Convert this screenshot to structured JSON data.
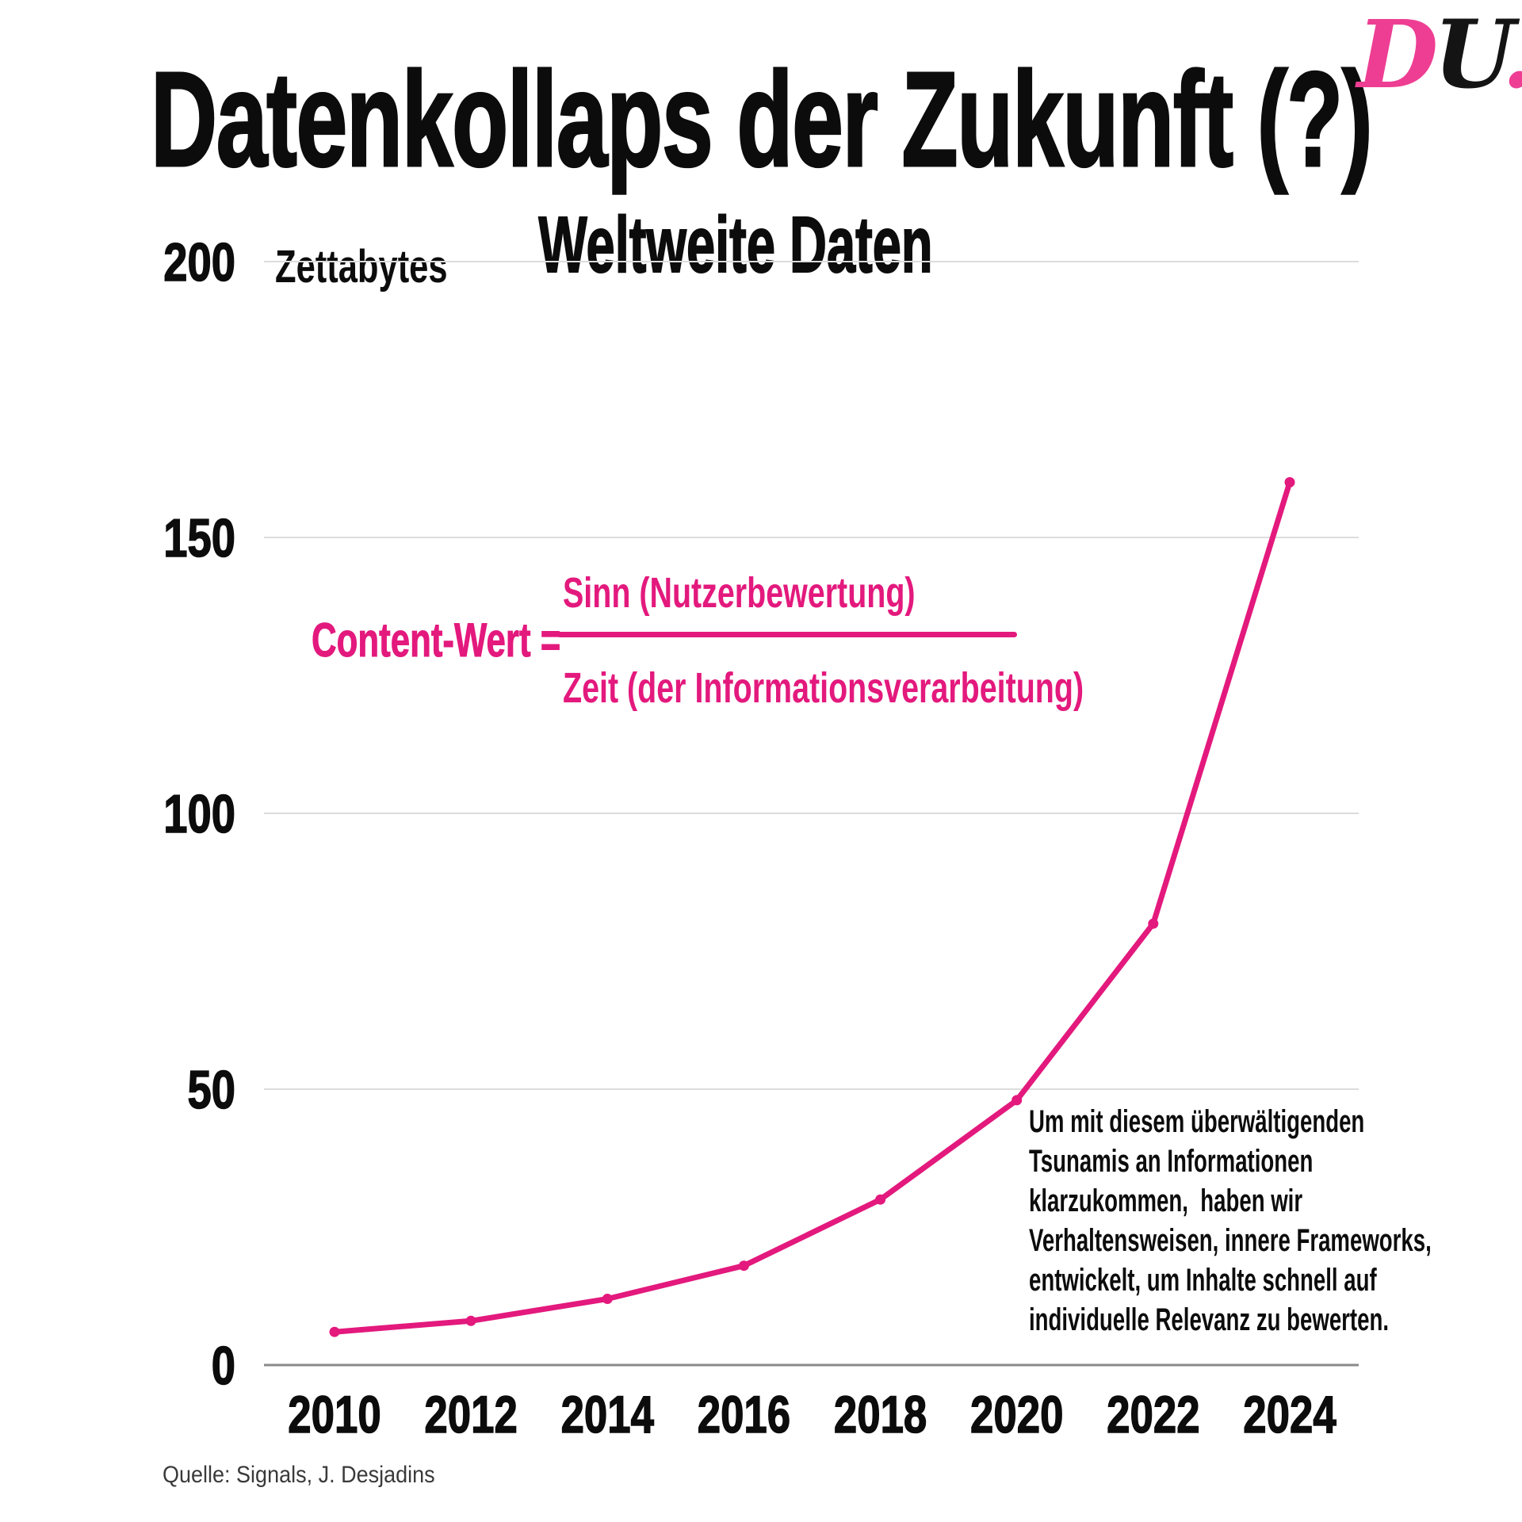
{
  "page": {
    "title": "Datenkollaps der Zukunft (?)",
    "logo": {
      "d": "D",
      "u": "U",
      "dot": "."
    }
  },
  "chart_data": {
    "type": "line",
    "title": "Weltweite Daten",
    "unit_label": "Zettabytes",
    "categories": [
      "2010",
      "2012",
      "2014",
      "2016",
      "2018",
      "2020",
      "2022",
      "2024"
    ],
    "series": [
      {
        "name": "Weltweite Daten (Zettabytes)",
        "values": [
          6,
          8,
          12,
          18,
          30,
          48,
          80,
          160
        ]
      }
    ],
    "xlabel": "",
    "ylabel": "Zettabytes",
    "yticks": [
      200,
      150,
      100,
      50,
      0
    ],
    "ylim": [
      0,
      200
    ],
    "grid": true,
    "legend": "none",
    "line_color": "#e3197d",
    "marker": "dot"
  },
  "formula": {
    "lhs": "Content-Wert =",
    "numerator": "Sinn (Nutzerbewertung)",
    "denominator": "Zeit (der Informationsverarbeitung)"
  },
  "annotation": {
    "lines": [
      "Um mit diesem überwältigenden",
      "Tsunamis an Informationen",
      "klarzukommen,  haben wir",
      "Verhaltensweisen, innere Frameworks,",
      "entwickelt, um Inhalte schnell auf",
      "individuelle Relevanz zu bewerten."
    ]
  },
  "source": {
    "text": "Quelle: Signals, J. Desjadins"
  },
  "colors": {
    "accent": "#e3197d",
    "logo_pink": "#ee3e93",
    "ink": "#0c0c0c",
    "gridline": "#dcdcdc",
    "baseline": "#8a8a8a",
    "source_text": "#3a3a3a",
    "background": "#ffffff"
  }
}
